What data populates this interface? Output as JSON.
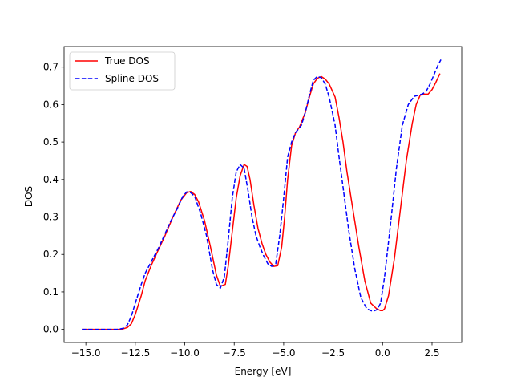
{
  "chart_data": {
    "type": "line",
    "title": "",
    "xlabel": "Energy [eV]",
    "ylabel": "DOS",
    "xlim": [
      -16.1,
      4.0
    ],
    "ylim": [
      -0.035,
      0.755
    ],
    "xticks": [
      -15.0,
      -12.5,
      -10.0,
      -7.5,
      -5.0,
      -2.5,
      0.0,
      2.5
    ],
    "xtick_labels": [
      "−15.0",
      "−12.5",
      "−10.0",
      "−7.5",
      "−5.0",
      "−2.5",
      "0.0",
      "2.5"
    ],
    "yticks": [
      0.0,
      0.1,
      0.2,
      0.3,
      0.4,
      0.5,
      0.6,
      0.7
    ],
    "ytick_labels": [
      "0.0",
      "0.1",
      "0.2",
      "0.3",
      "0.4",
      "0.5",
      "0.6",
      "0.7"
    ],
    "grid": false,
    "legend_position": "upper-left",
    "series": [
      {
        "name": "True DOS",
        "color": "#ff0000",
        "style": "solid",
        "x": [
          -15.2,
          -14.0,
          -13.2,
          -12.9,
          -12.7,
          -12.5,
          -12.2,
          -12.0,
          -11.7,
          -11.4,
          -11.0,
          -10.6,
          -10.2,
          -9.9,
          -9.7,
          -9.5,
          -9.3,
          -9.0,
          -8.7,
          -8.4,
          -8.2,
          -7.95,
          -7.8,
          -7.6,
          -7.4,
          -7.2,
          -7.0,
          -6.85,
          -6.7,
          -6.5,
          -6.3,
          -6.1,
          -5.9,
          -5.7,
          -5.5,
          -5.3,
          -5.1,
          -4.95,
          -4.8,
          -4.6,
          -4.4,
          -4.2,
          -3.9,
          -3.7,
          -3.5,
          -3.3,
          -3.1,
          -2.9,
          -2.7,
          -2.4,
          -2.2,
          -2.0,
          -1.8,
          -1.5,
          -1.2,
          -0.9,
          -0.6,
          -0.3,
          -0.1,
          0.0,
          0.1,
          0.3,
          0.6,
          0.9,
          1.2,
          1.5,
          1.7,
          1.9,
          2.1,
          2.3,
          2.5,
          2.7,
          2.9
        ],
        "y": [
          0.0,
          0.0,
          0.0,
          0.005,
          0.015,
          0.04,
          0.09,
          0.13,
          0.17,
          0.205,
          0.25,
          0.3,
          0.345,
          0.365,
          0.368,
          0.36,
          0.34,
          0.29,
          0.22,
          0.145,
          0.115,
          0.12,
          0.17,
          0.26,
          0.35,
          0.41,
          0.44,
          0.435,
          0.4,
          0.33,
          0.27,
          0.23,
          0.2,
          0.18,
          0.168,
          0.17,
          0.22,
          0.3,
          0.4,
          0.49,
          0.525,
          0.54,
          0.58,
          0.62,
          0.655,
          0.67,
          0.675,
          0.668,
          0.655,
          0.62,
          0.565,
          0.5,
          0.42,
          0.32,
          0.22,
          0.13,
          0.07,
          0.055,
          0.05,
          0.05,
          0.055,
          0.09,
          0.19,
          0.32,
          0.45,
          0.55,
          0.6,
          0.625,
          0.628,
          0.628,
          0.64,
          0.66,
          0.683
        ]
      },
      {
        "name": "Spline DOS",
        "color": "#0000ff",
        "style": "dashed",
        "x": [
          -15.2,
          -14.0,
          -13.4,
          -13.1,
          -12.9,
          -12.7,
          -12.5,
          -12.2,
          -12.0,
          -11.7,
          -11.3,
          -11.0,
          -10.7,
          -10.4,
          -10.1,
          -9.9,
          -9.7,
          -9.5,
          -9.2,
          -8.9,
          -8.6,
          -8.4,
          -8.2,
          -8.0,
          -7.8,
          -7.6,
          -7.4,
          -7.2,
          -7.0,
          -6.8,
          -6.6,
          -6.4,
          -6.2,
          -6.0,
          -5.8,
          -5.6,
          -5.4,
          -5.2,
          -5.0,
          -4.8,
          -4.6,
          -4.4,
          -4.1,
          -3.9,
          -3.7,
          -3.5,
          -3.3,
          -3.1,
          -2.9,
          -2.7,
          -2.4,
          -2.2,
          -2.0,
          -1.7,
          -1.4,
          -1.1,
          -0.8,
          -0.5,
          -0.3,
          -0.2,
          -0.1,
          0.1,
          0.4,
          0.7,
          1.0,
          1.3,
          1.6,
          1.8,
          2.0,
          2.2,
          2.4,
          2.6,
          2.8,
          2.95
        ],
        "y": [
          0.0,
          0.0,
          0.0,
          0.003,
          0.012,
          0.035,
          0.07,
          0.12,
          0.15,
          0.18,
          0.22,
          0.255,
          0.29,
          0.32,
          0.355,
          0.367,
          0.365,
          0.355,
          0.31,
          0.25,
          0.16,
          0.12,
          0.11,
          0.14,
          0.24,
          0.35,
          0.42,
          0.44,
          0.43,
          0.37,
          0.3,
          0.25,
          0.22,
          0.195,
          0.175,
          0.168,
          0.175,
          0.25,
          0.35,
          0.46,
          0.5,
          0.525,
          0.545,
          0.58,
          0.625,
          0.665,
          0.675,
          0.672,
          0.655,
          0.62,
          0.545,
          0.46,
          0.38,
          0.26,
          0.16,
          0.085,
          0.055,
          0.048,
          0.052,
          0.06,
          0.07,
          0.14,
          0.28,
          0.43,
          0.545,
          0.6,
          0.622,
          0.625,
          0.628,
          0.635,
          0.655,
          0.68,
          0.705,
          0.72
        ]
      }
    ]
  }
}
